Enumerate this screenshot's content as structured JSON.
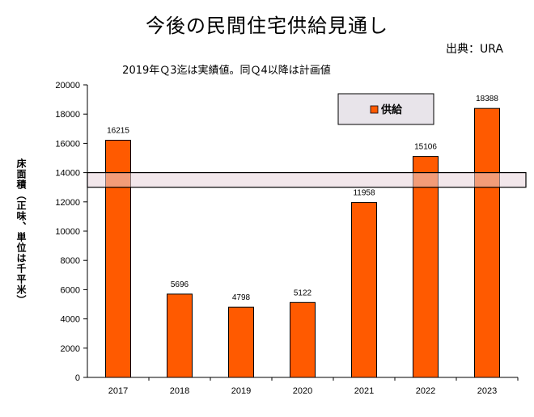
{
  "title": "今後の民間住宅供給見通し",
  "source": "出典：URA",
  "subtitle": "2019年Ｑ3迄は実績値。同Ｑ4以降は計画値",
  "chart_data": {
    "type": "bar",
    "categories": [
      "2017",
      "2018",
      "2019",
      "2020",
      "2021",
      "2022",
      "2023"
    ],
    "series": [
      {
        "name": "供給",
        "values": [
          16215,
          5696,
          4798,
          5122,
          11958,
          15106,
          18388
        ]
      }
    ],
    "data_labels": [
      "16215",
      "5696",
      "4798",
      "5122",
      "11958",
      "15106",
      "18388"
    ],
    "ylabel": "床面積（正味、単位は千平米）",
    "ylim": [
      0,
      20000
    ],
    "yticks": [
      0,
      2000,
      4000,
      6000,
      8000,
      10000,
      12000,
      14000,
      16000,
      18000,
      20000
    ],
    "band": [
      13000,
      14000
    ],
    "legend_position": "top-right",
    "grid": false,
    "colors": {
      "bar": "#FF5A00",
      "bar_edge": "#000000",
      "band": "#E8D3DA",
      "legend_box": "#E8E4EA"
    }
  }
}
